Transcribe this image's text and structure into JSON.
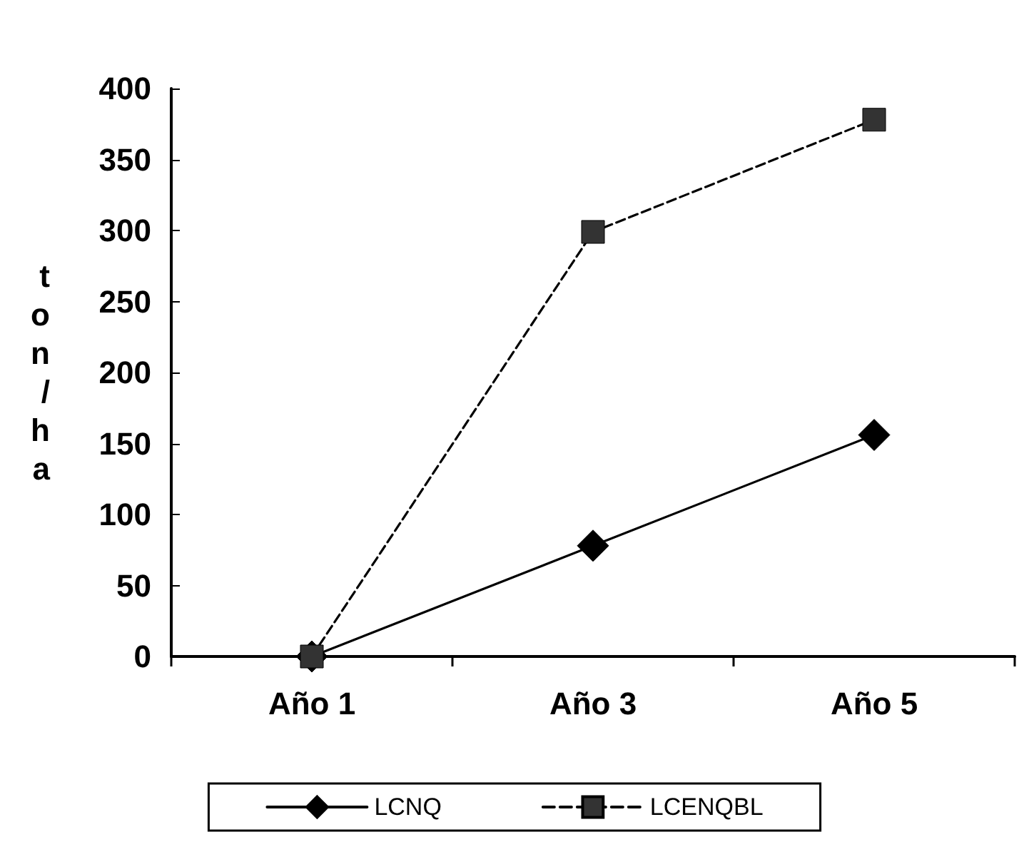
{
  "chart_data": {
    "type": "line",
    "ylabel": "ton/ha",
    "categories": [
      "Año 1",
      "Año 3",
      "Año 5"
    ],
    "series": [
      {
        "name": "LCNQ",
        "color": "#000000",
        "values": [
          0,
          78,
          156
        ],
        "marker": "diamond",
        "line_style": "solid"
      },
      {
        "name": "LCENQBL",
        "color": "#333333",
        "values": [
          0,
          299,
          378
        ],
        "marker": "square",
        "line_style": "dashed"
      }
    ],
    "ylim": [
      0,
      400
    ],
    "yticks": [
      0,
      50,
      100,
      150,
      200,
      250,
      300,
      350,
      400
    ],
    "grid": false,
    "legend": "bottom"
  }
}
